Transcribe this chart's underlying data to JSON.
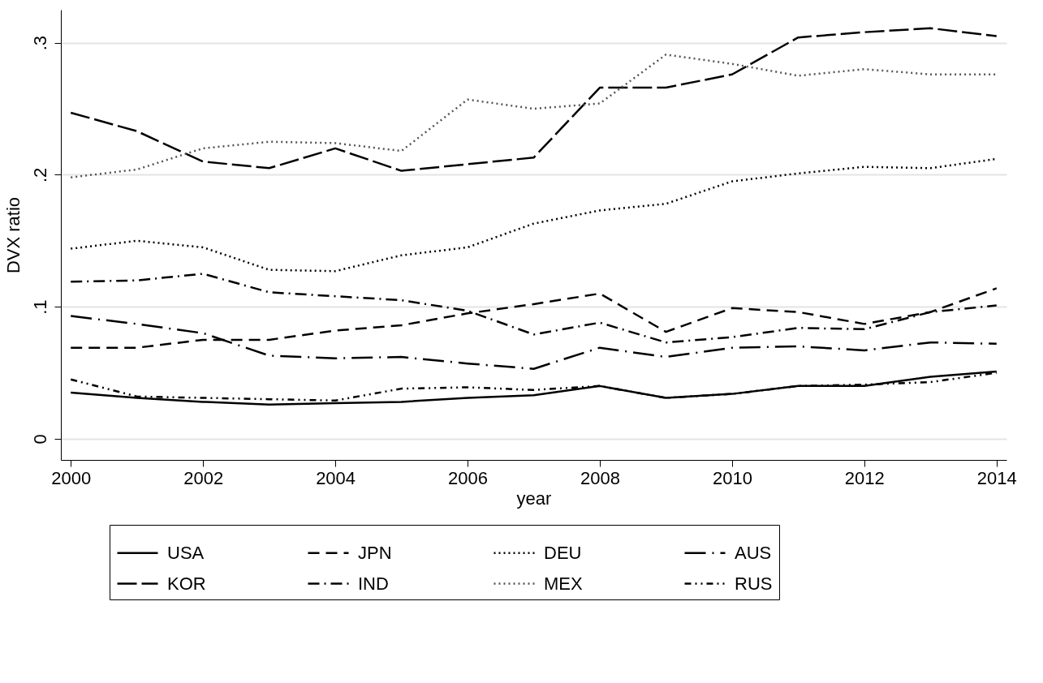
{
  "chart_data": {
    "type": "line",
    "xlabel": "year",
    "ylabel": "DVX ratio",
    "x": [
      2000,
      2001,
      2002,
      2003,
      2004,
      2005,
      2006,
      2007,
      2008,
      2009,
      2010,
      2011,
      2012,
      2013,
      2014
    ],
    "series": [
      {
        "name": "USA",
        "color": "#000000",
        "line_style": "solid",
        "values": [
          0.035,
          0.031,
          0.028,
          0.026,
          0.027,
          0.028,
          0.031,
          0.033,
          0.04,
          0.031,
          0.034,
          0.04,
          0.04,
          0.047,
          0.051
        ]
      },
      {
        "name": "JPN",
        "color": "#000000",
        "line_style": "dashed",
        "values": [
          0.069,
          0.069,
          0.075,
          0.075,
          0.082,
          0.086,
          0.095,
          0.102,
          0.11,
          0.081,
          0.099,
          0.096,
          0.087,
          0.096,
          0.114
        ]
      },
      {
        "name": "DEU",
        "color": "#000000",
        "line_style": "dotted",
        "values": [
          0.144,
          0.15,
          0.145,
          0.128,
          0.127,
          0.139,
          0.145,
          0.163,
          0.173,
          0.178,
          0.195,
          0.201,
          0.206,
          0.205,
          0.212
        ]
      },
      {
        "name": "AUS",
        "color": "#000000",
        "line_style": "longdashdot",
        "values": [
          0.093,
          0.087,
          0.08,
          0.063,
          0.061,
          0.062,
          0.057,
          0.053,
          0.069,
          0.062,
          0.069,
          0.07,
          0.067,
          0.073,
          0.072
        ]
      },
      {
        "name": "KOR",
        "color": "#000000",
        "line_style": "longdash",
        "values": [
          0.247,
          0.233,
          0.21,
          0.205,
          0.22,
          0.203,
          0.208,
          0.213,
          0.266,
          0.266,
          0.276,
          0.304,
          0.308,
          0.311,
          0.305
        ]
      },
      {
        "name": "IND",
        "color": "#000000",
        "line_style": "dashdot",
        "values": [
          0.119,
          0.12,
          0.125,
          0.111,
          0.108,
          0.105,
          0.097,
          0.079,
          0.088,
          0.073,
          0.077,
          0.084,
          0.083,
          0.096,
          0.101
        ]
      },
      {
        "name": "MEX",
        "color": "#555555",
        "line_style": "dotted",
        "values": [
          0.198,
          0.204,
          0.22,
          0.225,
          0.224,
          0.218,
          0.257,
          0.25,
          0.254,
          0.291,
          0.284,
          0.275,
          0.28,
          0.276,
          0.276
        ]
      },
      {
        "name": "RUS",
        "color": "#000000",
        "line_style": "dashdotdot",
        "values": [
          0.045,
          0.032,
          0.031,
          0.03,
          0.029,
          0.038,
          0.039,
          0.037,
          0.04,
          0.031,
          0.034,
          0.04,
          0.041,
          0.043,
          0.05
        ]
      }
    ],
    "xlim": [
      1999.85,
      2014.15
    ],
    "xticks": [
      2000,
      2002,
      2004,
      2006,
      2008,
      2010,
      2012,
      2014
    ],
    "ylim": [
      -0.016,
      0.325
    ],
    "yticks": [
      0,
      {
        "value": 0.1,
        "label": ".1"
      },
      {
        "value": 0.2,
        "label": ".2"
      },
      {
        "value": 0.3,
        "label": ".3"
      }
    ],
    "grid": "y",
    "legend": "bottom"
  }
}
